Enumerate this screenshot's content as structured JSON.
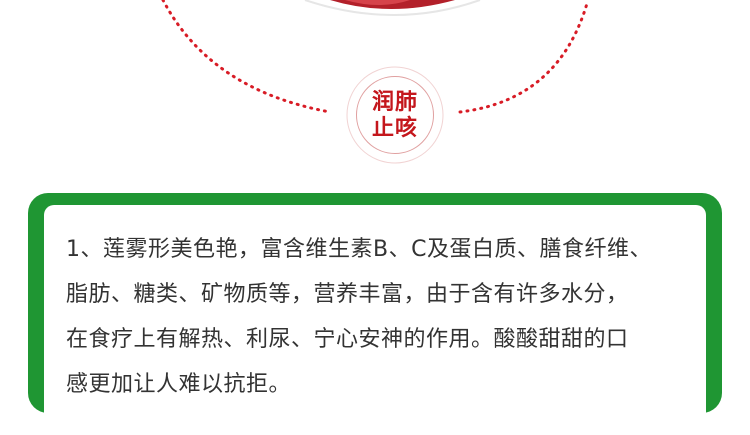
{
  "badge": {
    "line1": "润肺",
    "line2": "止咳"
  },
  "description": {
    "lines": [
      "1、莲雾形美色艳，富含维生素B、C及蛋白质、膳食纤维、",
      "脂肪、糖类、矿物质等，营养丰富，由于含有许多水分，",
      "在食疗上有解热、利尿、宁心安神的作用。酸酸甜甜的口",
      "感更加让人难以抗拒。"
    ]
  },
  "colors": {
    "green": "#1f9633",
    "red": "#c4161c",
    "text": "#333333"
  }
}
